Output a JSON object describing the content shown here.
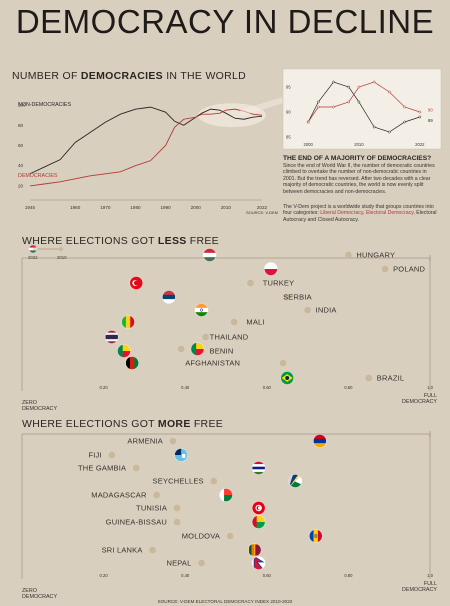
{
  "title": "DEMOCRACY IN DECLINE",
  "top_chart": {
    "title_pre": "NUMBER OF ",
    "title_bold": "DEMOCRACIES",
    "title_post": " IN THE WORLD",
    "label_non": "NON-DEMOCRACIES",
    "label_dem": "DEMOCRACIES",
    "source": "SOURCE: V-DEM",
    "x_ticks": [
      "1945",
      "1960",
      "1970",
      "1980",
      "1990",
      "2000",
      "2010",
      "2022"
    ],
    "y_ticks": [
      "100",
      "80",
      "60",
      "40",
      "20"
    ],
    "inset_y_ticks": [
      "95",
      "90",
      "85"
    ],
    "inset_x_ticks": [
      "2000",
      "2010",
      "2022"
    ],
    "inset_end_labels": [
      "90",
      "89"
    ]
  },
  "text_block": {
    "heading": "THE END OF A MAJORITY OF DEMOCRACIES?",
    "p1": "Since the end of World War II, the number of democratic countries climbed to overtake the number of non-democratic countries in 2001. But the trend has reversed. After two decades with a clear majority of democratic countries, the world is now evenly split between democracies and non-democracies.",
    "p2_start": "The V-Dem project is a worldwide study that groups countries into four categories: ",
    "p2_red": "Liberal Democracy, Electoral Democracy,",
    "p2_end": " Electoral Autocracy and Closed Autocracy."
  },
  "less_free": {
    "title_pre": "WHERE ELECTIONS GOT ",
    "title_bold": "LESS",
    "title_post": " FREE",
    "legend_2022": "2022",
    "legend_2010": "2010"
  },
  "more_free": {
    "title_pre": "WHERE ELECTIONS GOT ",
    "title_bold": "MORE",
    "title_post": " FREE"
  },
  "axis": {
    "zero_line1": "ZERO",
    "zero_line2": "DEMOCRACY",
    "full_line1": "FULL",
    "full_line2": "DEMOCRACY",
    "ticks": [
      "0.20",
      "0.40",
      "0.60",
      "0.80",
      "1.0"
    ]
  },
  "footer_source": "SOURCE: V-DEM ELECTORAL DEMOCRACY INDEX 2010-2022",
  "colors": {
    "red": "#b33a36",
    "dark": "#2b2622",
    "tan": "#c9b89c",
    "bg": "#d8cfbf"
  },
  "chart_data": [
    {
      "type": "line",
      "title": "NUMBER OF DEMOCRACIES IN THE WORLD",
      "xlim": [
        1945,
        2022
      ],
      "ylim": [
        10,
        110
      ],
      "series": [
        {
          "name": "NON-DEMOCRACIES",
          "x": [
            1945,
            1950,
            1955,
            1960,
            1965,
            1970,
            1975,
            1980,
            1985,
            1990,
            1993,
            1996,
            2000,
            2002,
            2005,
            2008,
            2010,
            2013,
            2016,
            2019,
            2022
          ],
          "values": [
            32,
            39,
            46,
            63,
            73,
            83,
            91,
            96,
            98,
            93,
            84,
            80,
            88,
            92,
            96,
            95,
            92,
            87,
            86,
            88,
            89
          ]
        },
        {
          "name": "DEMOCRACIES",
          "x": [
            1945,
            1950,
            1955,
            1960,
            1965,
            1970,
            1975,
            1980,
            1985,
            1990,
            1993,
            1996,
            2000,
            2002,
            2005,
            2008,
            2010,
            2013,
            2016,
            2019,
            2022
          ],
          "values": [
            20,
            22,
            24,
            27,
            30,
            32,
            34,
            40,
            45,
            60,
            78,
            86,
            88,
            91,
            91,
            92,
            95,
            96,
            94,
            91,
            90
          ]
        }
      ]
    },
    {
      "type": "dumbbell",
      "title": "WHERE ELECTIONS GOT LESS FREE",
      "xlim": [
        0,
        1
      ],
      "series": [
        {
          "name": "2022",
          "values": [
            0.46,
            0.61,
            0.28,
            0.36,
            0.44,
            0.26,
            0.22,
            0.25,
            0.27,
            0.43,
            0.65
          ]
        },
        {
          "name": "2010",
          "values": [
            0.8,
            0.89,
            0.56,
            0.65,
            0.7,
            0.52,
            0.45,
            0.44,
            0.64,
            0.39,
            0.85
          ]
        }
      ],
      "categories": [
        "HUNGARY",
        "POLAND",
        "TURKEY",
        "SERBIA",
        "INDIA",
        "MALI",
        "THAILAND",
        "BENIN",
        "AFGHANISTAN",
        "",
        "BRAZIL"
      ]
    },
    {
      "type": "dumbbell",
      "title": "WHERE ELECTIONS GOT MORE FREE",
      "xlim": [
        0,
        1
      ],
      "series": [
        {
          "name": "2022",
          "values": [
            0.73,
            0.39,
            0.58,
            0.67,
            0.5,
            0.58,
            0.58,
            0.72,
            0.57,
            0.58
          ]
        },
        {
          "name": "2010",
          "values": [
            0.37,
            0.22,
            0.28,
            0.47,
            0.33,
            0.38,
            0.38,
            0.51,
            0.32,
            0.44
          ]
        }
      ],
      "categories": [
        "ARMENIA",
        "FIJI",
        "THE GAMBIA",
        "SEYCHELLES",
        "MADAGASCAR",
        "TUNISIA",
        "GUINEA-BISSAU",
        "MOLDOVA",
        "SRI LANKA",
        "NEPAL"
      ]
    }
  ]
}
